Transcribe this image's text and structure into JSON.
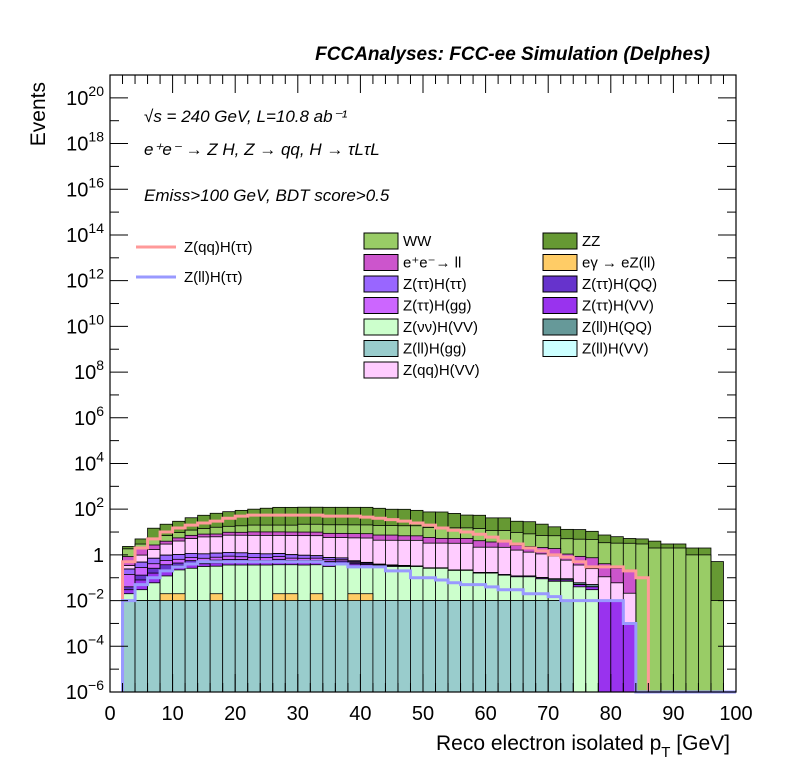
{
  "chart_data": {
    "type": "histogram",
    "title": "FCCAnalyses: FCC-ee Simulation (Delphes)",
    "xlabel": "Reco electron isolated p_T [GeV]",
    "ylabel": "Events",
    "xlim": [
      0,
      100
    ],
    "ylim": [
      1e-06,
      1e+21
    ],
    "yscale": "log",
    "x_ticks": [
      "0",
      "10",
      "20",
      "30",
      "40",
      "50",
      "60",
      "70",
      "80",
      "90",
      "100"
    ],
    "annotations": [
      "√s = 240 GeV, L=10.8 ab⁻¹",
      "e⁺e⁻ → Z H, Z → qq, H → τLτL",
      "Emiss>100 GeV, BDT score>0.5"
    ],
    "bin_edges": [
      2,
      4,
      6,
      8,
      10,
      12,
      14,
      16,
      18,
      20,
      22,
      24,
      26,
      28,
      30,
      32,
      34,
      36,
      38,
      40,
      42,
      44,
      46,
      48,
      50,
      52,
      54,
      56,
      58,
      60,
      62,
      64,
      66,
      68,
      70,
      72,
      74,
      76,
      78,
      80,
      82,
      84,
      86,
      88,
      90,
      92,
      94,
      96,
      98
    ],
    "stack": [
      {
        "name": "Z(ll)H(gg)",
        "color": "#99cccc",
        "values": [
          0.01,
          0.01,
          0.01,
          0.01,
          0.01,
          0.01,
          0.01,
          0.01,
          0.01,
          0.01,
          0.01,
          0.01,
          0.01,
          0.01,
          0.01,
          0.01,
          0.01,
          0.01,
          0.01,
          0.01,
          0.01,
          0.01,
          0.01,
          0.01,
          0.01,
          0.01,
          0.01,
          0.01,
          0.01,
          0.01,
          0.01,
          0.01,
          0.01,
          0.01,
          0.01,
          0.01,
          0,
          0,
          0,
          0,
          0,
          0,
          0,
          0,
          0,
          0,
          0,
          0
        ]
      },
      {
        "name": "eγ → eZ(ll)",
        "color": "#ffcc66",
        "values": [
          0,
          0,
          0,
          0.01,
          0.01,
          0,
          0,
          0.01,
          0,
          0,
          0,
          0,
          0.01,
          0.01,
          0,
          0.01,
          0,
          0,
          0.01,
          0.01,
          0,
          0,
          0,
          0,
          0,
          0,
          0,
          0,
          0,
          0,
          0,
          0,
          0,
          0,
          0,
          0,
          0,
          0,
          0,
          0,
          0,
          0,
          0,
          0,
          0,
          0,
          0,
          0
        ]
      },
      {
        "name": "Z(νν)H(VV)",
        "color": "#ccffcc",
        "values": [
          0.01,
          0.02,
          0.05,
          0.1,
          0.2,
          0.25,
          0.3,
          0.3,
          0.35,
          0.35,
          0.35,
          0.35,
          0.35,
          0.35,
          0.35,
          0.35,
          0.3,
          0.35,
          0.3,
          0.3,
          0.3,
          0.3,
          0.3,
          0.3,
          0.25,
          0.25,
          0.2,
          0.2,
          0.15,
          0.15,
          0.12,
          0.1,
          0.1,
          0.08,
          0.06,
          0.06,
          0.04,
          0.03,
          0,
          0,
          0,
          0,
          0,
          0,
          0,
          0,
          0,
          0
        ]
      },
      {
        "name": "Z(ττ)H(VV)",
        "color": "#9933ee",
        "values": [
          0.01,
          0.05,
          0.1,
          0.1,
          0.12,
          0.15,
          0.1,
          0.12,
          0.12,
          0.12,
          0.1,
          0.1,
          0.12,
          0.1,
          0.1,
          0.1,
          0.1,
          0.08,
          0.08,
          0.06,
          0.04,
          0.03,
          0.02,
          0.01,
          0.01,
          0.01,
          0.01,
          0.01,
          0.01,
          0.01,
          0.01,
          0.01,
          0.01,
          0.01,
          0.01,
          0.01,
          0.01,
          0.01,
          0.01,
          0.01,
          0.001,
          0,
          0,
          0,
          0,
          0,
          0,
          0
        ]
      },
      {
        "name": "Z(ττ)H(QQ)",
        "color": "#6633cc",
        "values": [
          0.01,
          0.05,
          0.1,
          0.15,
          0.1,
          0.15,
          0.1,
          0.15,
          0.15,
          0.15,
          0.1,
          0.1,
          0.15,
          0.1,
          0.1,
          0.1,
          0.1,
          0.1,
          0.05,
          0.05,
          0.02,
          0.01,
          0.01,
          0,
          0,
          0,
          0,
          0,
          0,
          0,
          0,
          0,
          0,
          0,
          0,
          0,
          0,
          0,
          0,
          0,
          0,
          0,
          0,
          0,
          0,
          0,
          0,
          0
        ]
      },
      {
        "name": "Z(ττ)H(gg)",
        "color": "#cc66ff",
        "values": [
          0.1,
          0.15,
          0.15,
          0.2,
          0.2,
          0.2,
          0.2,
          0.2,
          0.25,
          0.2,
          0.2,
          0.2,
          0.2,
          0.15,
          0.15,
          0.15,
          0.1,
          0.1,
          0.05,
          0.02,
          0.01,
          0.01,
          0,
          0,
          0,
          0,
          0,
          0,
          0,
          0,
          0,
          0,
          0,
          0,
          0,
          0,
          0,
          0,
          0,
          0,
          0,
          0,
          0,
          0,
          0,
          0,
          0,
          0
        ]
      },
      {
        "name": "Z(ττ)H(ττ)",
        "color": "#9966ff",
        "values": [
          0.1,
          0.2,
          0.3,
          0.4,
          0.4,
          0.4,
          0.4,
          0.4,
          0.4,
          0.4,
          0.4,
          0.35,
          0.3,
          0.3,
          0.25,
          0.2,
          0.15,
          0.1,
          0.05,
          0.02,
          0.01,
          0,
          0,
          0,
          0,
          0,
          0,
          0,
          0,
          0,
          0,
          0,
          0,
          0,
          0,
          0,
          0,
          0,
          0,
          0,
          0,
          0,
          0,
          0,
          0,
          0,
          0,
          0
        ]
      },
      {
        "name": "Z(ll)H(QQ)",
        "color": "#669999",
        "values": [
          0,
          0,
          0,
          0,
          0,
          0,
          0,
          0,
          0,
          0,
          0,
          0,
          0,
          0,
          0,
          0,
          0,
          0,
          0,
          0,
          0,
          0,
          0,
          0,
          0,
          0,
          0,
          0,
          0,
          0,
          0,
          0,
          0,
          0,
          0.01,
          0.01,
          0.01,
          0.01,
          0,
          0,
          0,
          0,
          0,
          0,
          0,
          0,
          0,
          0
        ]
      },
      {
        "name": "Z(ll)H(VV)",
        "color": "#ccffff",
        "values": [
          0,
          0,
          0,
          0,
          0,
          0,
          0,
          0,
          0,
          0,
          0,
          0,
          0,
          0,
          0,
          0,
          0,
          0,
          0,
          0,
          0,
          0,
          0,
          0,
          0,
          0,
          0,
          0,
          0,
          0,
          0,
          0,
          0,
          0,
          0,
          0,
          0,
          0,
          0,
          0,
          0,
          0,
          0,
          0,
          0,
          0,
          0,
          0
        ]
      },
      {
        "name": "Z(qq)H(VV)",
        "color": "#ffccff",
        "values": [
          0.1,
          0.5,
          1,
          2,
          3,
          4,
          5,
          5,
          6,
          6,
          6,
          6,
          6,
          6,
          6,
          6,
          5,
          5,
          5,
          5,
          4,
          4,
          4,
          4,
          3,
          3,
          3,
          3,
          2,
          2,
          2,
          1.5,
          1.2,
          1,
          0.8,
          0.5,
          0.3,
          0.2,
          0.1,
          0.05,
          0.02,
          0,
          0,
          0,
          0,
          0,
          0,
          0
        ]
      },
      {
        "name": "e⁺e⁻→ ll",
        "color": "#cc55cc",
        "values": [
          0.5,
          1,
          1,
          1,
          1.5,
          2,
          2,
          2,
          2.5,
          2.5,
          3,
          3,
          3,
          3,
          3,
          3,
          3,
          3,
          3,
          3,
          3,
          3,
          2.5,
          2.5,
          2.5,
          2,
          2,
          2,
          2,
          1.5,
          1.5,
          1,
          1,
          1,
          1,
          0.5,
          0.5,
          0.5,
          0.3,
          0.2,
          0.2,
          0,
          0,
          0,
          0,
          0,
          0,
          0
        ]
      },
      {
        "name": "WW",
        "color": "#99cc66",
        "values": [
          1,
          1,
          2,
          3,
          4,
          5,
          6,
          8,
          8,
          9,
          10,
          10,
          10,
          10,
          12,
          12,
          12,
          12,
          12,
          12,
          12,
          12,
          12,
          12,
          10,
          10,
          10,
          10,
          10,
          8,
          8,
          7,
          6,
          5,
          5,
          4,
          4,
          4,
          3,
          3,
          3,
          3,
          2,
          2,
          2,
          1,
          1,
          0.01
        ]
      },
      {
        "name": "ZZ",
        "color": "#669933",
        "values": [
          0.5,
          2,
          10,
          15,
          20,
          30,
          40,
          50,
          60,
          70,
          80,
          90,
          100,
          100,
          100,
          100,
          100,
          100,
          100,
          100,
          90,
          80,
          80,
          70,
          60,
          60,
          50,
          40,
          40,
          30,
          30,
          20,
          20,
          15,
          10,
          8,
          8,
          6,
          4,
          3,
          2,
          2,
          2,
          1,
          1,
          1,
          1,
          0.5
        ]
      }
    ],
    "overlays": [
      {
        "name": "Z(qq)H(ττ)",
        "color": "#ff9999",
        "values": [
          0.5,
          2,
          5,
          10,
          15,
          20,
          25,
          30,
          40,
          50,
          55,
          55,
          55,
          55,
          55,
          55,
          50,
          50,
          50,
          45,
          40,
          35,
          30,
          25,
          20,
          15,
          12,
          10,
          8,
          6,
          4,
          3,
          2,
          1.5,
          1,
          0.8,
          0.5,
          0.3,
          0.3,
          0.3,
          0.2,
          0.1,
          0,
          0,
          0,
          0,
          0,
          0
        ]
      },
      {
        "name": "Z(ll)H(ττ)",
        "color": "#9999ff",
        "values": [
          0.01,
          0.05,
          0.1,
          0.2,
          0.3,
          0.4,
          0.5,
          0.5,
          0.5,
          0.5,
          0.5,
          0.5,
          0.5,
          0.5,
          0.5,
          0.5,
          0.4,
          0.4,
          0.3,
          0.3,
          0.3,
          0.2,
          0.2,
          0.1,
          0.1,
          0.08,
          0.06,
          0.05,
          0.05,
          0.04,
          0.03,
          0.03,
          0.02,
          0.02,
          0.015,
          0.01,
          0.01,
          0.01,
          0.01,
          0.01,
          0.001,
          0,
          0,
          0,
          0,
          0,
          0,
          0
        ]
      }
    ],
    "legend_order": [
      "WW",
      "ZZ",
      "e⁺e⁻→ ll",
      "eγ → eZ(ll)",
      "Z(ττ)H(ττ)",
      "Z(ττ)H(QQ)",
      "Z(ττ)H(gg)",
      "Z(ττ)H(VV)",
      "Z(νν)H(VV)",
      "Z(ll)H(QQ)",
      "Z(ll)H(gg)",
      "Z(ll)H(VV)",
      "Z(qq)H(VV)"
    ]
  }
}
